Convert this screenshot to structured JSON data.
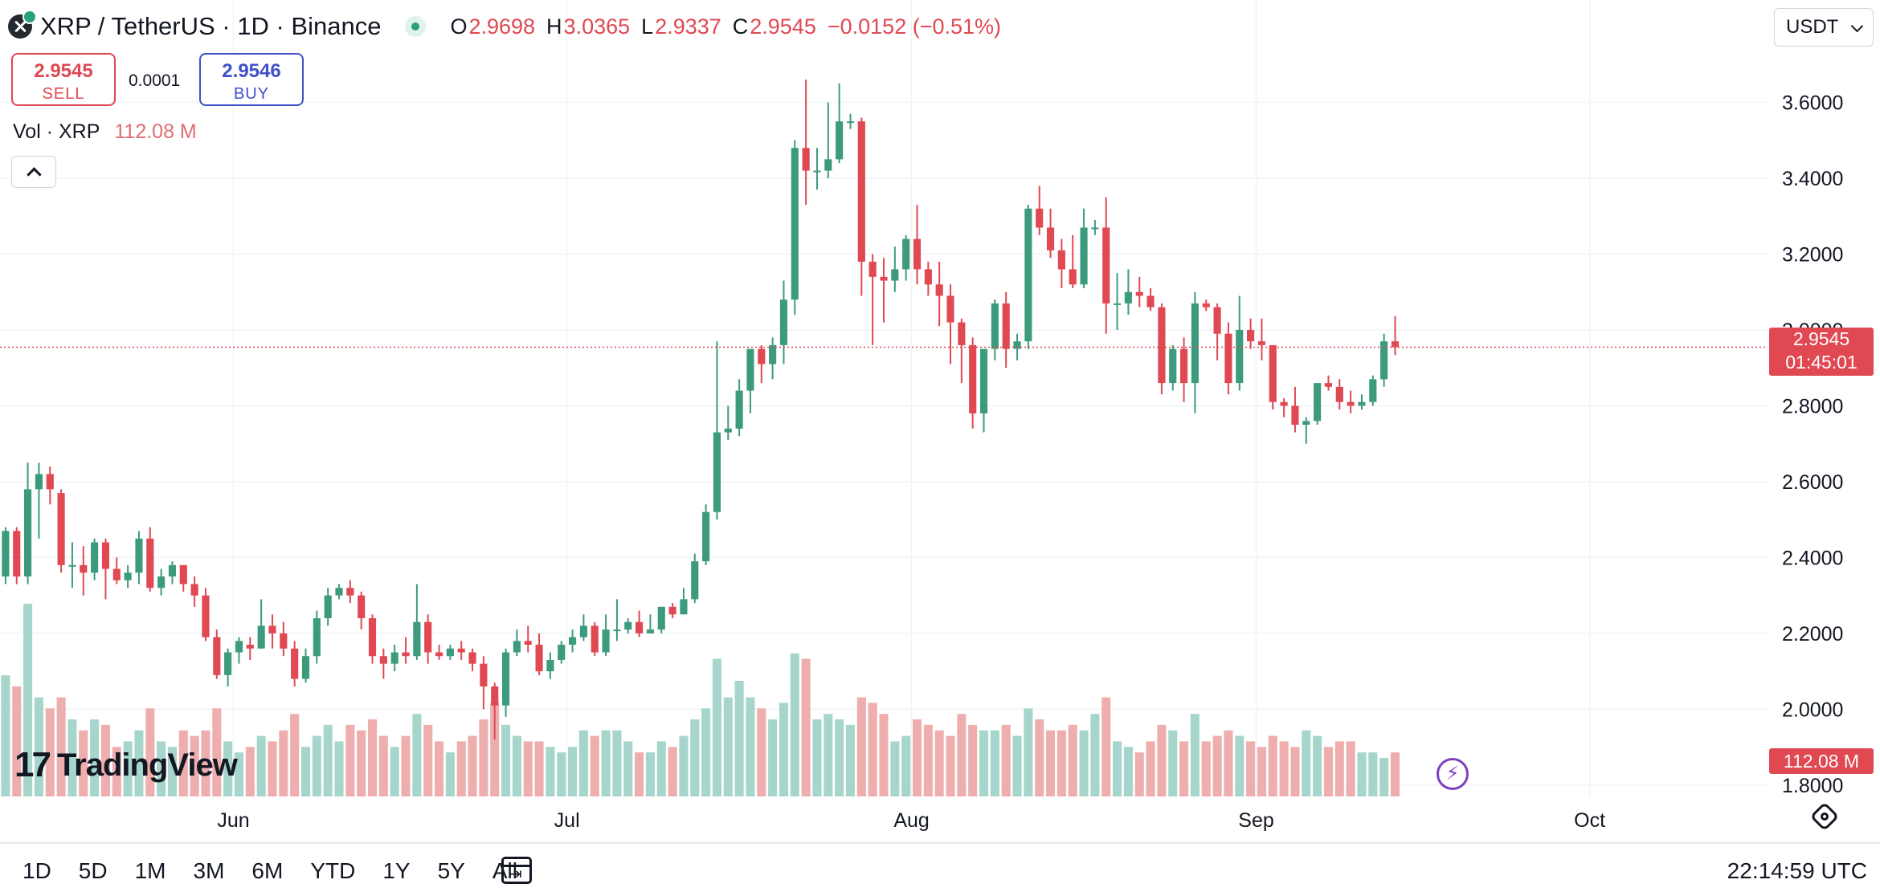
{
  "header": {
    "title": "XRP / TetherUS · 1D · Binance",
    "ohlc": {
      "o_label": "O",
      "o": "2.9698",
      "h_label": "H",
      "h": "3.0365",
      "l_label": "L",
      "l": "2.9337",
      "c_label": "C",
      "c": "2.9545",
      "change": "−0.0152 (−0.51%)"
    },
    "currency": "USDT"
  },
  "trade": {
    "sell_price": "2.9545",
    "sell_label": "SELL",
    "spread": "0.0001",
    "buy_price": "2.9546",
    "buy_label": "BUY"
  },
  "volume_legend": {
    "label": "Vol · XRP",
    "value": "112.08 M"
  },
  "price_tag": {
    "price": "2.9545",
    "countdown": "01:45:01"
  },
  "volume_tag": "112.08 M",
  "logo_text": "TradingView",
  "bottom": {
    "ranges": [
      "1D",
      "5D",
      "1M",
      "3M",
      "6M",
      "YTD",
      "1Y",
      "5Y",
      "All"
    ],
    "clock": "22:14:59 UTC"
  },
  "colors": {
    "up": "#3d9b7d",
    "down": "#e04852",
    "vol_up": "#a6d6cb",
    "vol_down": "#efaeae",
    "grid": "#f0f3fa",
    "accent": "#7e3fbf"
  },
  "icons": [
    "xrp-logo-icon",
    "status-dot-icon",
    "chevron-down-icon",
    "chevron-up-icon",
    "lightning-icon",
    "settings-icon",
    "calendar-goto-icon"
  ],
  "chart_data": {
    "type": "candlestick",
    "title": "XRP / TetherUS · 1D · Binance",
    "y_ticks": [
      "3.6000",
      "3.4000",
      "3.2000",
      "3.0000",
      "2.8000",
      "2.6000",
      "2.4000",
      "2.2000",
      "2.0000",
      "1.8000"
    ],
    "y_tick_values": [
      3.6,
      3.4,
      3.2,
      3.0,
      2.8,
      2.6,
      2.4,
      2.2,
      2.0,
      1.8
    ],
    "ylim": [
      1.77,
      3.87
    ],
    "x_ticks": [
      {
        "label": "Jun",
        "date": "2025-06-01"
      },
      {
        "label": "Jul",
        "date": "2025-07-01"
      },
      {
        "label": "Aug",
        "date": "2025-08-01"
      },
      {
        "label": "Sep",
        "date": "2025-09-01"
      },
      {
        "label": "Oct",
        "date": "2025-10-01"
      }
    ],
    "xlim": [
      "2025-05-11",
      "2025-10-17"
    ],
    "last_price": 2.9545,
    "start_date": "2025-05-11",
    "candles": [
      [
        2.35,
        2.47,
        2.48,
        2.33,
        22
      ],
      [
        2.47,
        2.35,
        2.48,
        2.33,
        20
      ],
      [
        2.35,
        2.58,
        2.65,
        2.33,
        35
      ],
      [
        2.58,
        2.62,
        2.65,
        2.45,
        18
      ],
      [
        2.62,
        2.58,
        2.64,
        2.54,
        16
      ],
      [
        2.57,
        2.38,
        2.58,
        2.36,
        18
      ],
      [
        2.38,
        2.38,
        2.44,
        2.32,
        14
      ],
      [
        2.38,
        2.36,
        2.43,
        2.3,
        12
      ],
      [
        2.36,
        2.44,
        2.45,
        2.34,
        14
      ],
      [
        2.44,
        2.37,
        2.45,
        2.29,
        13
      ],
      [
        2.37,
        2.34,
        2.4,
        2.33,
        9
      ],
      [
        2.34,
        2.36,
        2.38,
        2.32,
        10
      ],
      [
        2.36,
        2.45,
        2.47,
        2.33,
        12
      ],
      [
        2.45,
        2.32,
        2.48,
        2.31,
        16
      ],
      [
        2.32,
        2.35,
        2.37,
        2.3,
        10
      ],
      [
        2.35,
        2.38,
        2.39,
        2.33,
        9
      ],
      [
        2.38,
        2.33,
        2.38,
        2.31,
        12
      ],
      [
        2.33,
        2.3,
        2.35,
        2.27,
        11
      ],
      [
        2.3,
        2.19,
        2.32,
        2.18,
        12
      ],
      [
        2.19,
        2.09,
        2.21,
        2.08,
        16
      ],
      [
        2.09,
        2.15,
        2.16,
        2.06,
        10
      ],
      [
        2.15,
        2.18,
        2.19,
        2.12,
        8
      ],
      [
        2.17,
        2.16,
        2.19,
        2.13,
        9
      ],
      [
        2.16,
        2.22,
        2.29,
        2.16,
        11
      ],
      [
        2.22,
        2.2,
        2.25,
        2.16,
        10
      ],
      [
        2.2,
        2.16,
        2.23,
        2.14,
        12
      ],
      [
        2.16,
        2.08,
        2.18,
        2.06,
        15
      ],
      [
        2.08,
        2.14,
        2.16,
        2.07,
        9
      ],
      [
        2.14,
        2.24,
        2.26,
        2.12,
        11
      ],
      [
        2.24,
        2.3,
        2.32,
        2.22,
        13
      ],
      [
        2.3,
        2.32,
        2.33,
        2.29,
        10
      ],
      [
        2.32,
        2.3,
        2.34,
        2.28,
        13
      ],
      [
        2.3,
        2.24,
        2.31,
        2.21,
        12
      ],
      [
        2.24,
        2.14,
        2.25,
        2.12,
        14
      ],
      [
        2.14,
        2.12,
        2.16,
        2.08,
        11
      ],
      [
        2.12,
        2.15,
        2.17,
        2.1,
        9
      ],
      [
        2.15,
        2.14,
        2.19,
        2.12,
        11
      ],
      [
        2.14,
        2.23,
        2.33,
        2.13,
        15
      ],
      [
        2.23,
        2.15,
        2.25,
        2.12,
        13
      ],
      [
        2.15,
        2.14,
        2.17,
        2.13,
        10
      ],
      [
        2.14,
        2.16,
        2.17,
        2.13,
        8
      ],
      [
        2.16,
        2.15,
        2.18,
        2.13,
        10
      ],
      [
        2.15,
        2.12,
        2.16,
        2.1,
        11
      ],
      [
        2.12,
        2.06,
        2.14,
        2.0,
        14
      ],
      [
        2.06,
        2.01,
        2.07,
        1.92,
        17
      ],
      [
        2.01,
        2.15,
        2.16,
        1.98,
        13
      ],
      [
        2.15,
        2.18,
        2.21,
        2.14,
        11
      ],
      [
        2.18,
        2.17,
        2.22,
        2.15,
        10
      ],
      [
        2.17,
        2.1,
        2.2,
        2.09,
        10
      ],
      [
        2.1,
        2.13,
        2.15,
        2.08,
        9
      ],
      [
        2.13,
        2.17,
        2.18,
        2.12,
        8
      ],
      [
        2.17,
        2.19,
        2.21,
        2.15,
        9
      ],
      [
        2.19,
        2.22,
        2.25,
        2.18,
        12
      ],
      [
        2.22,
        2.15,
        2.23,
        2.14,
        11
      ],
      [
        2.15,
        2.21,
        2.25,
        2.14,
        12
      ],
      [
        2.21,
        2.21,
        2.29,
        2.18,
        12
      ],
      [
        2.21,
        2.23,
        2.24,
        2.2,
        10
      ],
      [
        2.23,
        2.2,
        2.26,
        2.19,
        8
      ],
      [
        2.2,
        2.21,
        2.25,
        2.2,
        8
      ],
      [
        2.21,
        2.27,
        2.27,
        2.2,
        10
      ],
      [
        2.27,
        2.25,
        2.28,
        2.24,
        9
      ],
      [
        2.25,
        2.29,
        2.32,
        2.26,
        11
      ],
      [
        2.29,
        2.39,
        2.41,
        2.28,
        14
      ],
      [
        2.39,
        2.52,
        2.54,
        2.38,
        16
      ],
      [
        2.52,
        2.73,
        2.97,
        2.5,
        25
      ],
      [
        2.73,
        2.74,
        2.8,
        2.71,
        18
      ],
      [
        2.74,
        2.84,
        2.87,
        2.72,
        21
      ],
      [
        2.84,
        2.95,
        2.95,
        2.78,
        18
      ],
      [
        2.95,
        2.91,
        2.96,
        2.86,
        16
      ],
      [
        2.91,
        2.96,
        2.98,
        2.87,
        14
      ],
      [
        2.96,
        3.08,
        3.13,
        2.91,
        17
      ],
      [
        3.08,
        3.48,
        3.5,
        3.04,
        26
      ],
      [
        3.48,
        3.42,
        3.66,
        3.33,
        25
      ],
      [
        3.42,
        3.42,
        3.48,
        3.37,
        14
      ],
      [
        3.42,
        3.45,
        3.6,
        3.4,
        15
      ],
      [
        3.45,
        3.55,
        3.65,
        3.44,
        14
      ],
      [
        3.55,
        3.55,
        3.57,
        3.53,
        13
      ],
      [
        3.55,
        3.18,
        3.56,
        3.09,
        18
      ],
      [
        3.18,
        3.14,
        3.2,
        2.96,
        17
      ],
      [
        3.14,
        3.13,
        3.19,
        3.02,
        15
      ],
      [
        3.13,
        3.16,
        3.22,
        3.1,
        10
      ],
      [
        3.16,
        3.24,
        3.25,
        3.13,
        11
      ],
      [
        3.24,
        3.16,
        3.33,
        3.12,
        14
      ],
      [
        3.16,
        3.12,
        3.18,
        3.09,
        13
      ],
      [
        3.12,
        3.09,
        3.18,
        3.01,
        12
      ],
      [
        3.09,
        3.02,
        3.12,
        2.91,
        11
      ],
      [
        3.02,
        2.96,
        3.03,
        2.86,
        15
      ],
      [
        2.96,
        2.78,
        2.98,
        2.74,
        13
      ],
      [
        2.78,
        2.95,
        2.95,
        2.73,
        12
      ],
      [
        2.95,
        3.07,
        3.08,
        2.92,
        12
      ],
      [
        3.07,
        2.95,
        3.1,
        2.9,
        13
      ],
      [
        2.95,
        2.97,
        2.99,
        2.92,
        11
      ],
      [
        2.97,
        3.32,
        3.33,
        2.95,
        16
      ],
      [
        3.32,
        3.27,
        3.38,
        3.25,
        14
      ],
      [
        3.27,
        3.21,
        3.32,
        3.19,
        12
      ],
      [
        3.21,
        3.16,
        3.24,
        3.11,
        12
      ],
      [
        3.16,
        3.12,
        3.25,
        3.11,
        13
      ],
      [
        3.12,
        3.27,
        3.32,
        3.11,
        12
      ],
      [
        3.27,
        3.27,
        3.29,
        3.25,
        15
      ],
      [
        3.27,
        3.07,
        3.35,
        2.99,
        18
      ],
      [
        3.07,
        3.07,
        3.15,
        3.0,
        10
      ],
      [
        3.07,
        3.1,
        3.16,
        3.04,
        9
      ],
      [
        3.1,
        3.09,
        3.14,
        3.06,
        8
      ],
      [
        3.09,
        3.06,
        3.11,
        3.05,
        10
      ],
      [
        3.06,
        2.86,
        3.07,
        2.83,
        13
      ],
      [
        2.86,
        2.95,
        2.96,
        2.84,
        12
      ],
      [
        2.95,
        2.86,
        2.98,
        2.81,
        10
      ],
      [
        2.86,
        3.07,
        3.1,
        2.78,
        15
      ],
      [
        3.07,
        3.06,
        3.08,
        3.05,
        10
      ],
      [
        3.06,
        2.99,
        3.07,
        2.92,
        11
      ],
      [
        2.99,
        2.86,
        3.02,
        2.83,
        12
      ],
      [
        2.86,
        3.0,
        3.09,
        2.84,
        11
      ],
      [
        3.0,
        2.97,
        3.03,
        2.95,
        10
      ],
      [
        2.97,
        2.96,
        3.03,
        2.92,
        9
      ],
      [
        2.96,
        2.81,
        2.96,
        2.79,
        11
      ],
      [
        2.81,
        2.8,
        2.82,
        2.77,
        10
      ],
      [
        2.8,
        2.75,
        2.85,
        2.73,
        9
      ],
      [
        2.75,
        2.76,
        2.77,
        2.7,
        12
      ],
      [
        2.76,
        2.86,
        2.86,
        2.75,
        11
      ],
      [
        2.86,
        2.85,
        2.88,
        2.84,
        9
      ],
      [
        2.85,
        2.81,
        2.87,
        2.79,
        10
      ],
      [
        2.81,
        2.8,
        2.84,
        2.78,
        10
      ],
      [
        2.8,
        2.81,
        2.83,
        2.79,
        8
      ],
      [
        2.81,
        2.87,
        2.88,
        2.8,
        8
      ],
      [
        2.87,
        2.97,
        2.99,
        2.85,
        7
      ],
      [
        2.97,
        2.9545,
        3.0365,
        2.9337,
        8
      ]
    ]
  }
}
